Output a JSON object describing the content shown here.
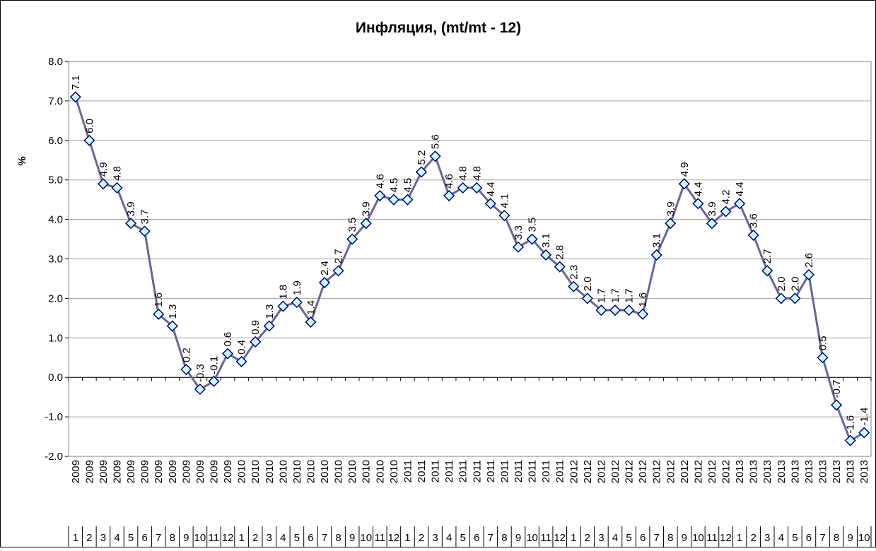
{
  "chart_data": {
    "type": "line",
    "title": "Инфляция, (mt/mt - 12)",
    "y_label": "%",
    "years": [
      "2009",
      "2009",
      "2009",
      "2009",
      "2009",
      "2009",
      "2009",
      "2009",
      "2009",
      "2009",
      "2009",
      "2009",
      "2010",
      "2010",
      "2010",
      "2010",
      "2010",
      "2010",
      "2010",
      "2010",
      "2010",
      "2010",
      "2010",
      "2010",
      "2011",
      "2011",
      "2011",
      "2011",
      "2011",
      "2011",
      "2011",
      "2011",
      "2011",
      "2011",
      "2011",
      "2011",
      "2012",
      "2012",
      "2012",
      "2012",
      "2012",
      "2012",
      "2012",
      "2012",
      "2012",
      "2012",
      "2012",
      "2012",
      "2013",
      "2013",
      "2013",
      "2013",
      "2013",
      "2013",
      "2013",
      "2013",
      "2013",
      "2013"
    ],
    "categories": [
      "1",
      "2",
      "3",
      "4",
      "5",
      "6",
      "7",
      "8",
      "9",
      "10",
      "11",
      "12",
      "1",
      "2",
      "3",
      "4",
      "5",
      "6",
      "7",
      "8",
      "9",
      "10",
      "11",
      "12",
      "1",
      "2",
      "3",
      "4",
      "5",
      "6",
      "7",
      "8",
      "9",
      "10",
      "11",
      "12",
      "1",
      "2",
      "3",
      "4",
      "5",
      "6",
      "7",
      "8",
      "9",
      "10",
      "11",
      "12",
      "1",
      "2",
      "3",
      "4",
      "5",
      "6",
      "7",
      "8",
      "9",
      "10"
    ],
    "values": [
      7.1,
      6.0,
      4.9,
      4.8,
      3.9,
      3.7,
      1.6,
      1.3,
      0.2,
      -0.3,
      -0.1,
      0.6,
      0.4,
      0.9,
      1.3,
      1.8,
      1.9,
      1.4,
      2.4,
      2.7,
      3.5,
      3.9,
      4.6,
      4.5,
      4.5,
      5.2,
      5.6,
      4.6,
      4.8,
      4.8,
      4.4,
      4.1,
      3.3,
      3.5,
      3.1,
      2.8,
      2.3,
      2.0,
      1.7,
      1.7,
      1.7,
      1.6,
      3.1,
      3.9,
      4.9,
      4.4,
      3.9,
      4.2,
      4.4,
      3.6,
      2.7,
      2.0,
      2.0,
      2.6,
      0.5,
      -0.7,
      -1.6,
      -1.4
    ],
    "value_labels": [
      "7.1",
      "6.0",
      "4.9",
      "4.8",
      "3.9",
      "3.7",
      "1.6",
      "1.3",
      "0.2",
      "-0.3",
      "-0.1",
      "0.6",
      "0.4",
      "0.9",
      "1.3",
      "1.8",
      "1.9",
      "1.4",
      "2.4",
      "2.7",
      "3.5",
      "3.9",
      "4.6",
      "4.5",
      "4.5",
      "5.2",
      "5.6",
      "4.6",
      "4.8",
      "4.8",
      "4.4",
      "4.1",
      "3.3",
      "3.5",
      "3.1",
      "2.8",
      "2.3",
      "2.0",
      "1.7",
      "1.7",
      "1.7",
      "1.6",
      "3.1",
      "3.9",
      "4.9",
      "4.4",
      "3.9",
      "4.2",
      "4.4",
      "3.6",
      "2.7",
      "2.0",
      "2.0",
      "2.6",
      "0.5",
      "-0.7",
      "-1.6",
      "-1.4"
    ],
    "color": "#666699",
    "marker_fill": "#ccffff",
    "marker_stroke": "#000080",
    "ylim": [
      -2,
      8
    ],
    "yticks": [
      {
        "value": -2,
        "label": "-2.0"
      },
      {
        "value": -1,
        "label": "-1.0"
      },
      {
        "value": 0,
        "label": "0.0"
      },
      {
        "value": 1,
        "label": "1.0"
      },
      {
        "value": 2,
        "label": "2.0"
      },
      {
        "value": 3,
        "label": "3.0"
      },
      {
        "value": 4,
        "label": "4.0"
      },
      {
        "value": 5,
        "label": "5.0"
      },
      {
        "value": 6,
        "label": "6.0"
      },
      {
        "value": 7,
        "label": "7.0"
      },
      {
        "value": 8,
        "label": "8.0"
      }
    ],
    "grid": true
  }
}
